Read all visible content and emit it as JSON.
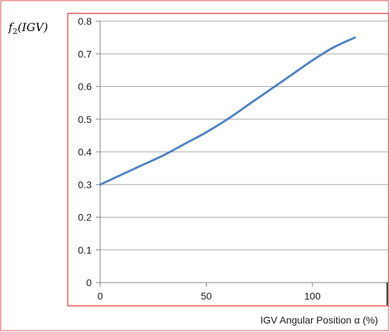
{
  "chart_data": {
    "type": "line",
    "title": "",
    "xlabel": "IGV Angular Position α (%)",
    "ylabel": "f₂(IGV)",
    "xlim": [
      0,
      140
    ],
    "ylim": [
      0,
      0.8
    ],
    "x_ticks": [
      "0",
      "50",
      "100"
    ],
    "y_ticks": [
      "0",
      "0.1",
      "0.2",
      "0.3",
      "0.4",
      "0.5",
      "0.6",
      "0.7",
      "0.8"
    ],
    "grid": "horizontal",
    "legend": "none",
    "series": [
      {
        "x": [
          0,
          10,
          20,
          30,
          40,
          50,
          60,
          70,
          80,
          90,
          100,
          110,
          120
        ],
        "y": [
          0.3,
          0.33,
          0.36,
          0.39,
          0.425,
          0.46,
          0.5,
          0.545,
          0.59,
          0.635,
          0.68,
          0.72,
          0.75
        ],
        "color": "#4F81BD"
      }
    ]
  }
}
